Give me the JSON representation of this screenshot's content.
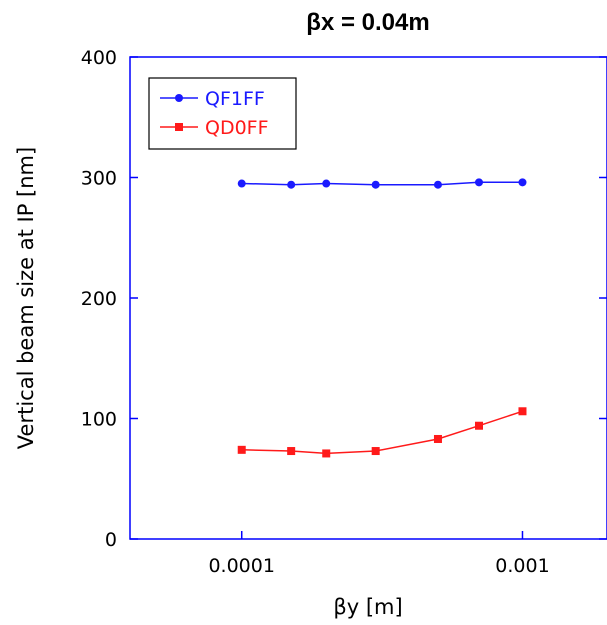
{
  "chart_data": {
    "type": "line",
    "title": "βx = 0.04m",
    "xlabel": "βy [m]",
    "ylabel": "Vertical beam size at IP [nm]",
    "x_scale": "log",
    "xlim": [
      4e-05,
      0.002
    ],
    "ylim": [
      0,
      400
    ],
    "x_ticks": [
      {
        "value": 0.0001,
        "label": "0.0001"
      },
      {
        "value": 0.001,
        "label": "0.001"
      }
    ],
    "y_ticks": [
      {
        "value": 0,
        "label": "0"
      },
      {
        "value": 100,
        "label": "100"
      },
      {
        "value": 200,
        "label": "200"
      },
      {
        "value": 300,
        "label": "300"
      },
      {
        "value": 400,
        "label": "400"
      }
    ],
    "grid": false,
    "legend": "top-left",
    "series": [
      {
        "name": "QF1FF",
        "color": "#1a1aff",
        "marker": "circle",
        "x": [
          0.0001,
          0.00015,
          0.0002,
          0.0003,
          0.0005,
          0.0007,
          0.001
        ],
        "y": [
          295,
          294,
          295,
          294,
          294,
          296,
          296
        ]
      },
      {
        "name": "QD0FF",
        "color": "#ff1a1a",
        "marker": "square",
        "x": [
          0.0001,
          0.00015,
          0.0002,
          0.0003,
          0.0005,
          0.0007,
          0.001
        ],
        "y": [
          74,
          73,
          71,
          73,
          83,
          94,
          106
        ]
      }
    ],
    "axis_color": "#0000ff"
  }
}
